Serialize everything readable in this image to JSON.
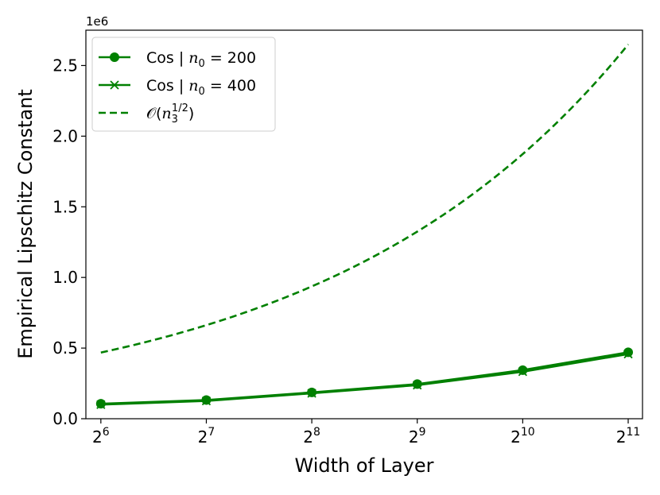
{
  "chart_data": {
    "type": "line",
    "xscale": "log2",
    "xlabel": "Width of Layer",
    "ylabel": "Empirical Lipschitz Constant",
    "y_offset_label": "1e6",
    "xlim": [
      58,
      2250
    ],
    "ylim": [
      0,
      2.75
    ],
    "xticks": [
      {
        "value": 64,
        "base": "2",
        "exp": "6"
      },
      {
        "value": 128,
        "base": "2",
        "exp": "7"
      },
      {
        "value": 256,
        "base": "2",
        "exp": "8"
      },
      {
        "value": 512,
        "base": "2",
        "exp": "9"
      },
      {
        "value": 1024,
        "base": "2",
        "exp": "10"
      },
      {
        "value": 2048,
        "base": "2",
        "exp": "11"
      }
    ],
    "yticks": [
      {
        "value": 0.0,
        "label": "0.0"
      },
      {
        "value": 0.5,
        "label": "0.5"
      },
      {
        "value": 1.0,
        "label": "1.0"
      },
      {
        "value": 1.5,
        "label": "1.5"
      },
      {
        "value": 2.0,
        "label": "2.0"
      },
      {
        "value": 2.5,
        "label": "2.5"
      }
    ],
    "grid": false,
    "legend_position": "top-left",
    "color": "#008000",
    "series": [
      {
        "name": "Cos | n0 = 200",
        "legend": {
          "prefix": "Cos | ",
          "var": "n",
          "sub": "0",
          "suffix": " = 200"
        },
        "marker": "circle",
        "linestyle": "solid",
        "x": [
          64,
          128,
          256,
          512,
          1024,
          2048
        ],
        "y": [
          0.106,
          0.132,
          0.186,
          0.245,
          0.344,
          0.47
        ]
      },
      {
        "name": "Cos | n0 = 400",
        "legend": {
          "prefix": "Cos | ",
          "var": "n",
          "sub": "0",
          "suffix": " = 400"
        },
        "marker": "x",
        "linestyle": "solid",
        "x": [
          64,
          128,
          256,
          512,
          1024,
          2048
        ],
        "y": [
          0.1,
          0.126,
          0.18,
          0.238,
          0.333,
          0.458
        ]
      },
      {
        "name": "O(n3^(1/2))",
        "legend": {
          "prefix": "𝒪(",
          "var": "n",
          "sub": "3",
          "sup": "1/2",
          "suffix": ")"
        },
        "marker": "none",
        "linestyle": "dashed",
        "x": [
          64,
          96,
          128,
          192,
          256,
          384,
          512,
          768,
          1024,
          1536,
          2048
        ],
        "y": [
          0.468,
          0.573,
          0.662,
          0.811,
          0.936,
          1.147,
          1.324,
          1.622,
          1.873,
          2.294,
          2.649
        ]
      }
    ]
  }
}
